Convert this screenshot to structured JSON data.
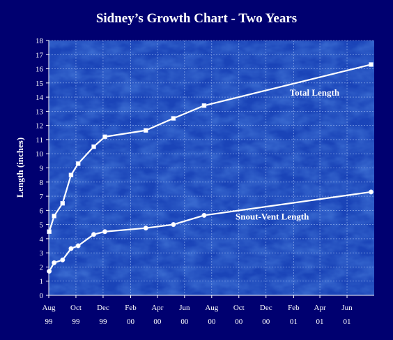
{
  "colors": {
    "page_background": "#000070",
    "plot_background": "#1a44b8",
    "plot_texture_light": "#4a7ee0",
    "plot_texture_dark": "#0e2f8f",
    "grid": "#9bb7f0",
    "line": "#ffffff",
    "text": "#ffffff"
  },
  "chart_data": {
    "type": "line",
    "title": "Sidney’s Growth Chart - Two Years",
    "xlabel": "",
    "ylabel": "Length (inches)",
    "ylim": [
      0,
      18
    ],
    "y_ticks": [
      0,
      1,
      2,
      3,
      4,
      5,
      6,
      7,
      8,
      9,
      10,
      11,
      12,
      13,
      14,
      15,
      16,
      17,
      18
    ],
    "xlim": [
      "1999-08-01",
      "2001-08-01"
    ],
    "x_ticks": [
      {
        "date": "1999-08-01",
        "label_month": "Aug",
        "label_year": "99"
      },
      {
        "date": "1999-10-01",
        "label_month": "Oct",
        "label_year": "99"
      },
      {
        "date": "1999-12-01",
        "label_month": "Dec",
        "label_year": "99"
      },
      {
        "date": "2000-02-01",
        "label_month": "Feb",
        "label_year": "00"
      },
      {
        "date": "2000-04-01",
        "label_month": "Apr",
        "label_year": "00"
      },
      {
        "date": "2000-06-01",
        "label_month": "Jun",
        "label_year": "00"
      },
      {
        "date": "2000-08-01",
        "label_month": "Aug",
        "label_year": "00"
      },
      {
        "date": "2000-10-01",
        "label_month": "Oct",
        "label_year": "00"
      },
      {
        "date": "2000-12-01",
        "label_month": "Dec",
        "label_year": "00"
      },
      {
        "date": "2001-02-01",
        "label_month": "Feb",
        "label_year": "01"
      },
      {
        "date": "2001-04-01",
        "label_month": "Apr",
        "label_year": "01"
      },
      {
        "date": "2001-06-01",
        "label_month": "Jun",
        "label_year": "01"
      }
    ],
    "grid": true,
    "legend": "none",
    "series": [
      {
        "name": "Total Length",
        "marker": "square",
        "points": [
          {
            "x": "1999-08-02",
            "y": 4.5
          },
          {
            "x": "1999-08-13",
            "y": 5.6
          },
          {
            "x": "1999-09-01",
            "y": 6.5
          },
          {
            "x": "1999-09-20",
            "y": 8.5
          },
          {
            "x": "1999-10-06",
            "y": 9.3
          },
          {
            "x": "1999-11-10",
            "y": 10.5
          },
          {
            "x": "1999-12-05",
            "y": 11.2
          },
          {
            "x": "2000-03-06",
            "y": 11.65
          },
          {
            "x": "2000-05-07",
            "y": 12.5
          },
          {
            "x": "2000-07-15",
            "y": 13.4
          },
          {
            "x": "2001-07-25",
            "y": 16.3
          }
        ]
      },
      {
        "name": "Snout-Vent Length",
        "marker": "circle",
        "points": [
          {
            "x": "1999-08-02",
            "y": 1.7
          },
          {
            "x": "1999-08-13",
            "y": 2.3
          },
          {
            "x": "1999-09-01",
            "y": 2.5
          },
          {
            "x": "1999-09-20",
            "y": 3.3
          },
          {
            "x": "1999-10-06",
            "y": 3.5
          },
          {
            "x": "1999-11-10",
            "y": 4.3
          },
          {
            "x": "1999-12-05",
            "y": 4.5
          },
          {
            "x": "2000-03-06",
            "y": 4.75
          },
          {
            "x": "2000-05-07",
            "y": 5.0
          },
          {
            "x": "2000-07-15",
            "y": 5.65
          },
          {
            "x": "2001-07-25",
            "y": 7.3
          }
        ]
      }
    ],
    "annotations": [
      {
        "text": "Total Length",
        "series": "Total Length",
        "x": "2001-03-20",
        "y": 14.1
      },
      {
        "text": "Snout-Vent Length",
        "series": "Snout-Vent Length",
        "x": "2000-12-15",
        "y": 5.35
      }
    ]
  }
}
